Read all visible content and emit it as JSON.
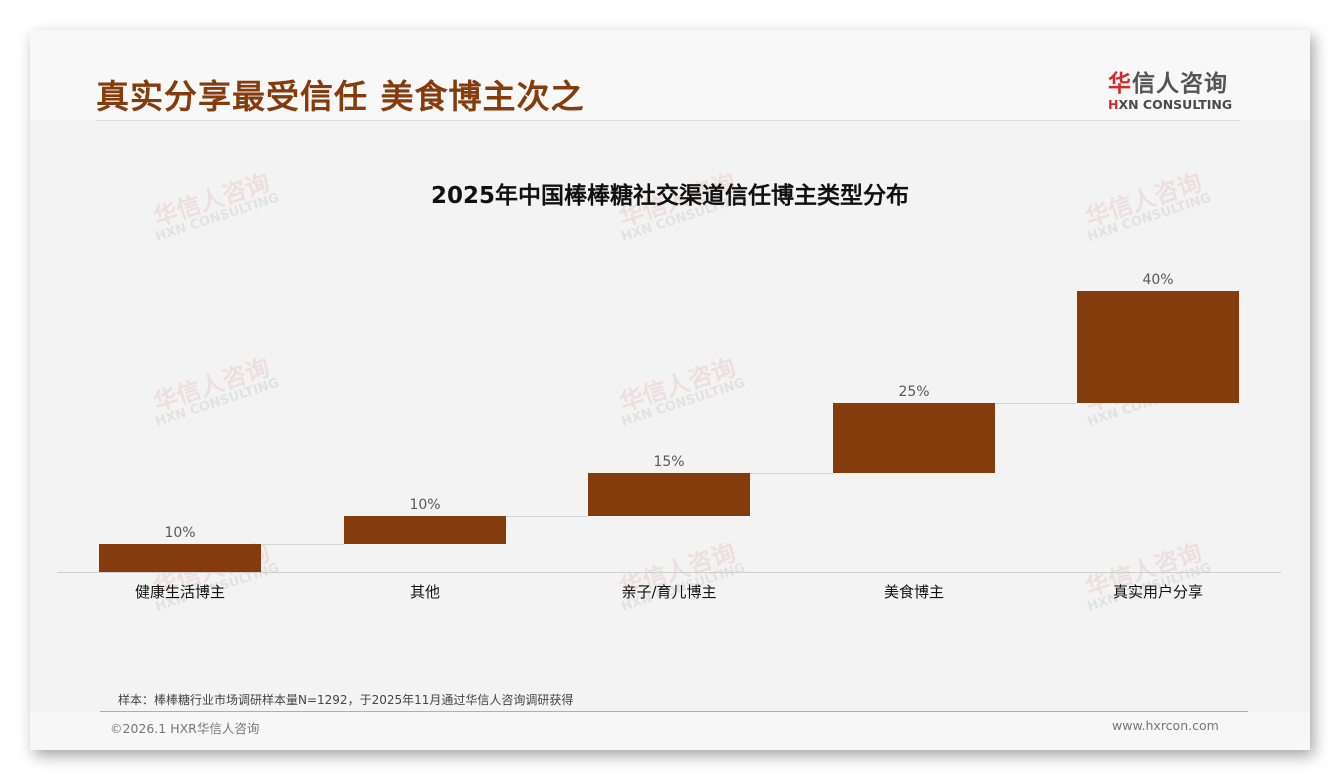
{
  "header": {
    "page_title": "真实分享最受信任 美食博主次之",
    "logo": {
      "cn_accent": "华",
      "cn_rest": "信人咨询",
      "en_accent": "H",
      "en_rest": "XN CONSULTING"
    }
  },
  "watermark": {
    "cn": "华信人咨询",
    "en": "HXN CONSULTING"
  },
  "colors": {
    "bar": "#843c0c",
    "title": "#843c0c",
    "logo_accent": "#d42a2a"
  },
  "chart_data": {
    "type": "bar",
    "subtype": "waterfall",
    "title": "2025年中国棒棒糖社交渠道信任博主类型分布",
    "categories": [
      "健康生活博主",
      "其他",
      "亲子/育儿博主",
      "美食博主",
      "真实用户分享"
    ],
    "values": [
      10,
      10,
      15,
      25,
      40
    ],
    "value_labels": [
      "10%",
      "10%",
      "15%",
      "25%",
      "40%"
    ],
    "cumulative_start": [
      0,
      10,
      20,
      35,
      60
    ],
    "cumulative_end": [
      10,
      20,
      35,
      60,
      100
    ],
    "unit": "%",
    "xlabel": "",
    "ylabel": "",
    "ylim": [
      0,
      100
    ],
    "grid": false,
    "legend": null
  },
  "footer": {
    "note": "样本：棒棒糖行业市场调研样本量N=1292，于2025年11月通过华信人咨询调研获得",
    "copyright": "©2026.1 HXR华信人咨询",
    "website": "www.hxrcon.com"
  }
}
